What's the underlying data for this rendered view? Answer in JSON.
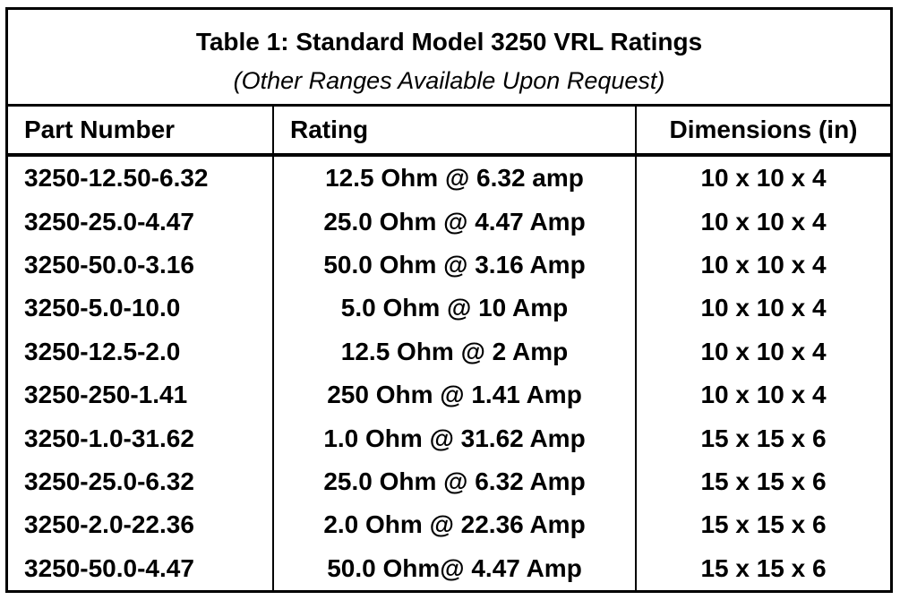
{
  "header": {
    "title": "Table 1: Standard Model 3250 VRL Ratings",
    "subtitle": "(Other Ranges Available Upon Request)"
  },
  "table": {
    "columns": [
      "Part Number",
      "Rating",
      "Dimensions (in)"
    ],
    "rows": [
      [
        "3250-12.50-6.32",
        "12.5 Ohm @ 6.32 amp",
        "10 x 10 x 4"
      ],
      [
        "3250-25.0-4.47",
        "25.0 Ohm @ 4.47 Amp",
        "10 x 10 x 4"
      ],
      [
        "3250-50.0-3.16",
        "50.0 Ohm @ 3.16 Amp",
        "10 x 10 x 4"
      ],
      [
        "3250-5.0-10.0",
        "5.0 Ohm @ 10 Amp",
        "10 x 10 x 4"
      ],
      [
        "3250-12.5-2.0",
        "12.5 Ohm @ 2 Amp",
        "10 x 10 x 4"
      ],
      [
        "3250-250-1.41",
        "250 Ohm @ 1.41 Amp",
        "10 x 10 x 4"
      ],
      [
        "3250-1.0-31.62",
        "1.0 Ohm @ 31.62 Amp",
        "15 x 15 x 6"
      ],
      [
        "3250-25.0-6.32",
        "25.0 Ohm @ 6.32 Amp",
        "15 x 15 x 6"
      ],
      [
        "3250-2.0-22.36",
        "2.0 Ohm @ 22.36 Amp",
        "15 x 15 x 6"
      ],
      [
        "3250-50.0-4.47",
        "50.0 Ohm@ 4.47 Amp",
        "15 x 15 x 6"
      ]
    ]
  }
}
